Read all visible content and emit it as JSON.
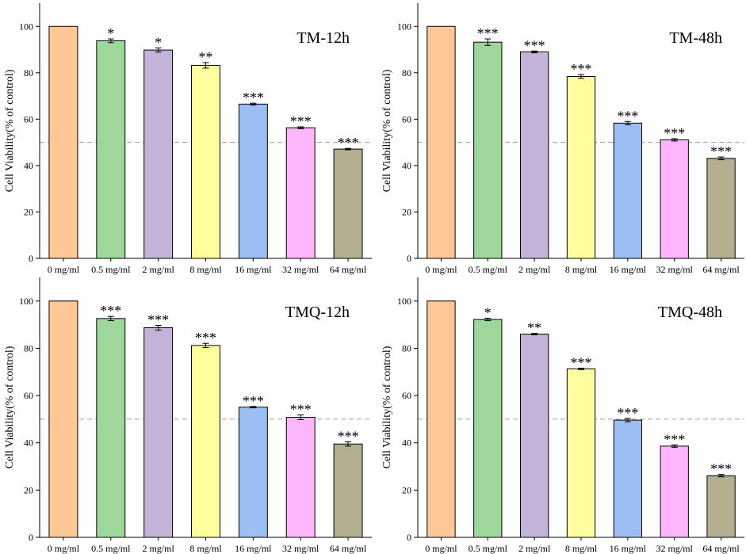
{
  "chart_data": [
    {
      "type": "bar",
      "title": "TM-12h",
      "ylabel": "Cell  Viability(% of control)",
      "xlabel": "",
      "ylim": [
        0,
        110
      ],
      "yticks": [
        0,
        20,
        40,
        60,
        80,
        100
      ],
      "reference_line": 50,
      "categories": [
        "0 mg/ml",
        "0.5 mg/ml",
        "2 mg/ml",
        "8 mg/ml",
        "16 mg/ml",
        "32 mg/ml",
        "64 mg/ml"
      ],
      "values": [
        100,
        93.8,
        89.8,
        83.2,
        66.5,
        56.3,
        47.1
      ],
      "errors": [
        0,
        0.8,
        0.9,
        1.2,
        0.4,
        0.4,
        0.3
      ],
      "significance": [
        "",
        "*",
        "*",
        "**",
        "***",
        "***",
        "***"
      ]
    },
    {
      "type": "bar",
      "title": "TM-48h",
      "ylabel": "Cell  Viability(% of control)",
      "xlabel": "",
      "ylim": [
        0,
        110
      ],
      "yticks": [
        0,
        20,
        40,
        60,
        80,
        100
      ],
      "reference_line": 50,
      "categories": [
        "0 mg/ml",
        "0.5 mg/ml",
        "2 mg/ml",
        "8 mg/ml",
        "16 mg/ml",
        "32 mg/ml",
        "64 mg/ml"
      ],
      "values": [
        100,
        93.2,
        89.0,
        78.4,
        58.3,
        51.1,
        43.1
      ],
      "errors": [
        0,
        1.4,
        0.4,
        0.8,
        0.7,
        0.5,
        0.6
      ],
      "significance": [
        "",
        "***",
        "***",
        "***",
        "***",
        "***",
        "***"
      ]
    },
    {
      "type": "bar",
      "title": "TMQ-12h",
      "ylabel": "Cell  Viability(% of control)",
      "xlabel": "",
      "ylim": [
        0,
        110
      ],
      "yticks": [
        0,
        20,
        40,
        60,
        80,
        100
      ],
      "reference_line": 50,
      "categories": [
        "0 mg/ml",
        "0.5 mg/ml",
        "2 mg/ml",
        "8 mg/ml",
        "16 mg/ml",
        "32 mg/ml",
        "64 mg/ml"
      ],
      "values": [
        100,
        92.6,
        88.7,
        81.2,
        55.1,
        50.8,
        39.5
      ],
      "errors": [
        0,
        0.9,
        1.0,
        0.9,
        0.3,
        1.0,
        0.9
      ],
      "significance": [
        "",
        "***",
        "***",
        "***",
        "***",
        "***",
        "***"
      ]
    },
    {
      "type": "bar",
      "title": "TMQ-48h",
      "ylabel": "Cell  Viability(% of control)",
      "xlabel": "",
      "ylim": [
        0,
        110
      ],
      "yticks": [
        0,
        20,
        40,
        60,
        80,
        100
      ],
      "reference_line": 50,
      "categories": [
        "0 mg/ml",
        "0.5 mg/ml",
        "2 mg/ml",
        "8 mg/ml",
        "16 mg/ml",
        "32 mg/ml",
        "64 mg/ml"
      ],
      "values": [
        100,
        92.2,
        86.0,
        71.3,
        49.6,
        38.6,
        26.1
      ],
      "errors": [
        0,
        0.5,
        0.3,
        0.3,
        0.7,
        0.5,
        0.5
      ],
      "significance": [
        "",
        "*",
        "**",
        "***",
        "***",
        "***",
        "***"
      ]
    }
  ],
  "colors": {
    "bars": [
      "#FDC896",
      "#9DD79B",
      "#C4B3D8",
      "#FEFE9E",
      "#9DBDF5",
      "#FDB5FB",
      "#B3B08F"
    ],
    "axis": "#000000",
    "reference_line": "#9a9a9a"
  }
}
